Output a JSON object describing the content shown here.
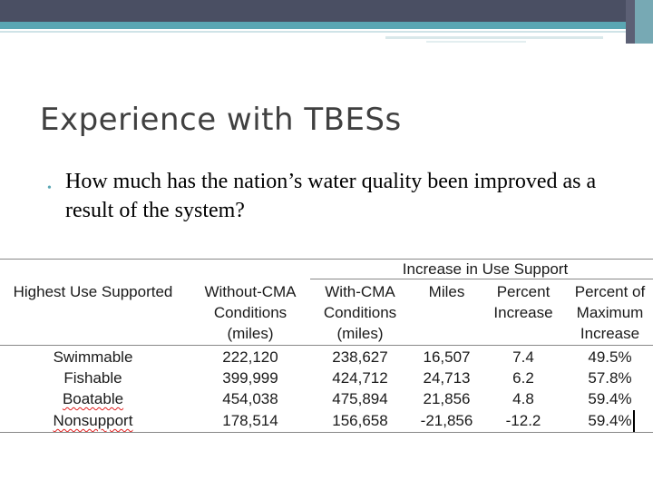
{
  "slide": {
    "title": "Experience with TBESs",
    "bullet": "How much has the nation’s water quality been improved as a result of the system?"
  },
  "table": {
    "group_header": "Increase in Use Support",
    "headers": [
      "Highest Use Supported",
      "Without-CMA\nConditions\n(miles)",
      "With-CMA\nConditions\n(miles)",
      "Miles",
      "Percent\nIncrease",
      "Percent of\nMaximum\nIncrease"
    ],
    "rows": [
      [
        "Swimmable",
        "222,120",
        "238,627",
        "16,507",
        "7.4",
        "49.5%"
      ],
      [
        "Fishable",
        "399,999",
        "424,712",
        "24,713",
        "6.2",
        "57.8%"
      ],
      [
        "Boatable",
        "454,038",
        "475,894",
        "21,856",
        "4.8",
        "59.4%"
      ],
      [
        "Nonsupport",
        "178,514",
        "156,658",
        "-21,856",
        "-12.2",
        "59.4%"
      ]
    ]
  },
  "colors": {
    "header_bar": "#4a4f63",
    "accent": "#5aa6b3",
    "title_text": "#404040"
  }
}
